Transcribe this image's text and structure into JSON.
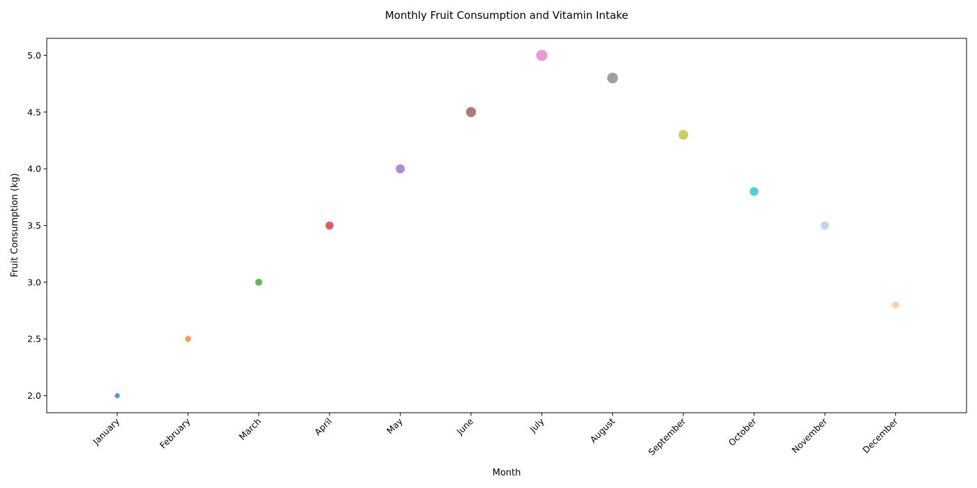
{
  "chart_data": {
    "type": "scatter",
    "title": "Monthly Fruit Consumption and Vitamin Intake",
    "xlabel": "Month",
    "ylabel": "Fruit Consumption (kg)",
    "categories": [
      "January",
      "February",
      "March",
      "April",
      "May",
      "June",
      "July",
      "August",
      "September",
      "October",
      "November",
      "December"
    ],
    "values": [
      2.0,
      2.5,
      3.0,
      3.5,
      4.0,
      4.5,
      5.0,
      4.8,
      4.3,
      3.8,
      3.5,
      2.8
    ],
    "ylim": [
      1.85,
      5.15
    ],
    "yticks": [
      "2.0",
      "2.5",
      "3.0",
      "3.5",
      "4.0",
      "4.5",
      "5.0"
    ],
    "grid": false,
    "colors": [
      "#1f77b4",
      "#ff7f0e",
      "#2ca02c",
      "#d62728",
      "#9467bd",
      "#8c564b",
      "#e377c2",
      "#7f7f7f",
      "#bcbd22",
      "#17becf",
      "#aec7e8",
      "#ffbb78"
    ],
    "point_alpha": 0.75
  }
}
